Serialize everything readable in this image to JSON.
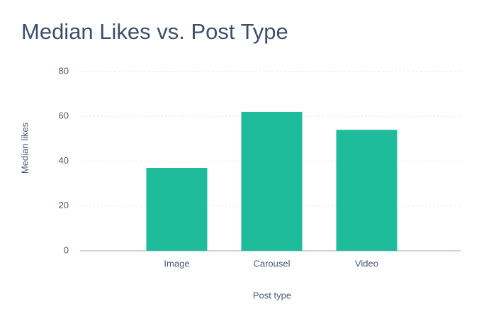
{
  "chart_data": {
    "type": "bar",
    "title": "Median Likes vs. Post Type",
    "x_label": "Post type",
    "y_label": "Median likes",
    "categories": [
      "Image",
      "Carousel",
      "Video"
    ],
    "values": [
      37,
      62,
      54
    ],
    "color": "#1fbc9c",
    "ylim": [
      0,
      80
    ],
    "yticks": [
      0,
      20,
      40,
      60,
      80
    ],
    "grid": true
  }
}
